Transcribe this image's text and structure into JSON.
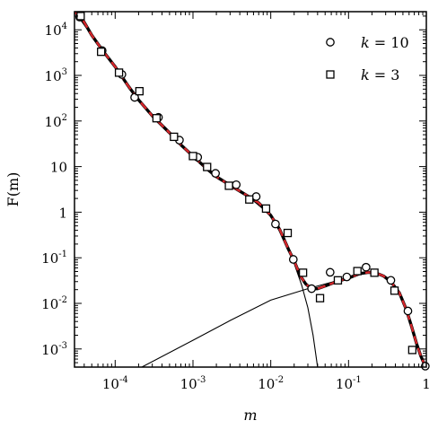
{
  "chart_data": {
    "type": "scatter",
    "xscale": "log",
    "yscale": "log",
    "xlim": [
      3e-05,
      1
    ],
    "ylim": [
      0.0004,
      25000
    ],
    "xlabel": "m",
    "ylabel": "F(m)",
    "legend_placement": "top-right",
    "x_ticks": [
      {
        "value": 0.0001,
        "base": "10",
        "exp": "-4"
      },
      {
        "value": 0.001,
        "base": "10",
        "exp": "-3"
      },
      {
        "value": 0.01,
        "base": "10",
        "exp": "-2"
      },
      {
        "value": 0.1,
        "base": "10",
        "exp": "-1"
      },
      {
        "value": 1,
        "base": "1",
        "exp": ""
      }
    ],
    "y_ticks": [
      {
        "value": 0.001,
        "base": "10",
        "exp": "-3"
      },
      {
        "value": 0.01,
        "base": "10",
        "exp": "-2"
      },
      {
        "value": 0.1,
        "base": "10",
        "exp": "-1"
      },
      {
        "value": 1,
        "base": "1",
        "exp": ""
      },
      {
        "value": 10,
        "base": "10",
        "exp": ""
      },
      {
        "value": 100,
        "base": "10",
        "exp": "2"
      },
      {
        "value": 1000,
        "base": "10",
        "exp": "3"
      },
      {
        "value": 10000,
        "base": "10",
        "exp": "4"
      }
    ],
    "series": [
      {
        "name": "k = 10",
        "legend_var": "k",
        "legend_value": "= 10",
        "marker": "circle",
        "color": "#000000",
        "points": [
          [
            3.5e-05,
            19000
          ],
          [
            6.8e-05,
            3500
          ],
          [
            0.000122,
            1050
          ],
          [
            0.000178,
            330
          ],
          [
            0.00036,
            120
          ],
          [
            0.00067,
            38
          ],
          [
            0.00115,
            16
          ],
          [
            0.00195,
            7.1
          ],
          [
            0.0036,
            4.0
          ],
          [
            0.0065,
            2.2
          ],
          [
            0.0115,
            0.55
          ],
          [
            0.0195,
            0.092
          ],
          [
            0.0335,
            0.021
          ],
          [
            0.058,
            0.048
          ],
          [
            0.095,
            0.038
          ],
          [
            0.168,
            0.062
          ],
          [
            0.35,
            0.032
          ],
          [
            0.58,
            0.0068
          ],
          [
            0.97,
            0.00042
          ]
        ]
      },
      {
        "name": "k = 3",
        "legend_var": "k",
        "legend_value": "= 3",
        "marker": "square",
        "color": "#000000",
        "points": [
          [
            3.6e-05,
            20000
          ],
          [
            6.6e-05,
            3300
          ],
          [
            0.000112,
            1150
          ],
          [
            0.000205,
            450
          ],
          [
            0.00034,
            115
          ],
          [
            0.00057,
            45
          ],
          [
            0.001,
            17
          ],
          [
            0.00152,
            9.8
          ],
          [
            0.0029,
            3.8
          ],
          [
            0.0053,
            1.9
          ],
          [
            0.0087,
            1.2
          ],
          [
            0.0165,
            0.35
          ],
          [
            0.026,
            0.047
          ],
          [
            0.043,
            0.013
          ],
          [
            0.073,
            0.032
          ],
          [
            0.13,
            0.051
          ],
          [
            0.215,
            0.047
          ],
          [
            0.39,
            0.019
          ],
          [
            0.66,
            0.00095
          ]
        ]
      }
    ],
    "fit_curves": [
      {
        "style": "dashed",
        "color": "#d6262b",
        "points": [
          [
            3e-05,
            25000
          ],
          [
            3.8e-05,
            17000
          ],
          [
            5e-05,
            7600
          ],
          [
            7e-05,
            3400
          ],
          [
            0.0001,
            1550
          ],
          [
            0.00015,
            560
          ],
          [
            0.0002,
            290
          ],
          [
            0.0003,
            130
          ],
          [
            0.0005,
            55
          ],
          [
            0.0007,
            30
          ],
          [
            0.001,
            17
          ],
          [
            0.0015,
            9
          ],
          [
            0.002,
            6
          ],
          [
            0.003,
            3.9
          ],
          [
            0.005,
            2.3
          ],
          [
            0.007,
            1.6
          ],
          [
            0.01,
            0.85
          ],
          [
            0.013,
            0.42
          ],
          [
            0.017,
            0.15
          ],
          [
            0.02,
            0.085
          ],
          [
            0.024,
            0.04
          ],
          [
            0.028,
            0.027
          ],
          [
            0.033,
            0.021
          ],
          [
            0.04,
            0.021
          ],
          [
            0.05,
            0.024
          ],
          [
            0.07,
            0.03
          ],
          [
            0.1,
            0.036
          ],
          [
            0.14,
            0.045
          ],
          [
            0.18,
            0.048
          ],
          [
            0.22,
            0.047
          ],
          [
            0.28,
            0.04
          ],
          [
            0.35,
            0.03
          ],
          [
            0.45,
            0.017
          ],
          [
            0.55,
            0.0075
          ],
          [
            0.65,
            0.003
          ],
          [
            0.75,
            0.0013
          ],
          [
            0.85,
            0.0007
          ],
          [
            0.95,
            0.00045
          ],
          [
            1.0,
            0.0004
          ]
        ]
      }
    ],
    "component_curves": [
      {
        "style": "solid",
        "color": "#000000",
        "points": [
          [
            3e-05,
            25000
          ],
          [
            5e-05,
            7600
          ],
          [
            0.0001,
            1550
          ],
          [
            0.0002,
            290
          ],
          [
            0.0005,
            55
          ],
          [
            0.001,
            17
          ],
          [
            0.002,
            6
          ],
          [
            0.005,
            2.3
          ],
          [
            0.01,
            0.85
          ],
          [
            0.015,
            0.24
          ],
          [
            0.02,
            0.075
          ],
          [
            0.025,
            0.025
          ],
          [
            0.03,
            0.008
          ],
          [
            0.035,
            0.002
          ],
          [
            0.04,
            0.0004
          ]
        ]
      },
      {
        "style": "solid",
        "color": "#000000",
        "points": [
          [
            0.00022,
            0.0004
          ],
          [
            0.001,
            0.00155
          ],
          [
            0.003,
            0.0042
          ],
          [
            0.01,
            0.0118
          ],
          [
            0.03,
            0.021
          ],
          [
            0.06,
            0.029
          ],
          [
            0.1,
            0.036
          ],
          [
            0.15,
            0.045
          ]
        ]
      }
    ]
  }
}
